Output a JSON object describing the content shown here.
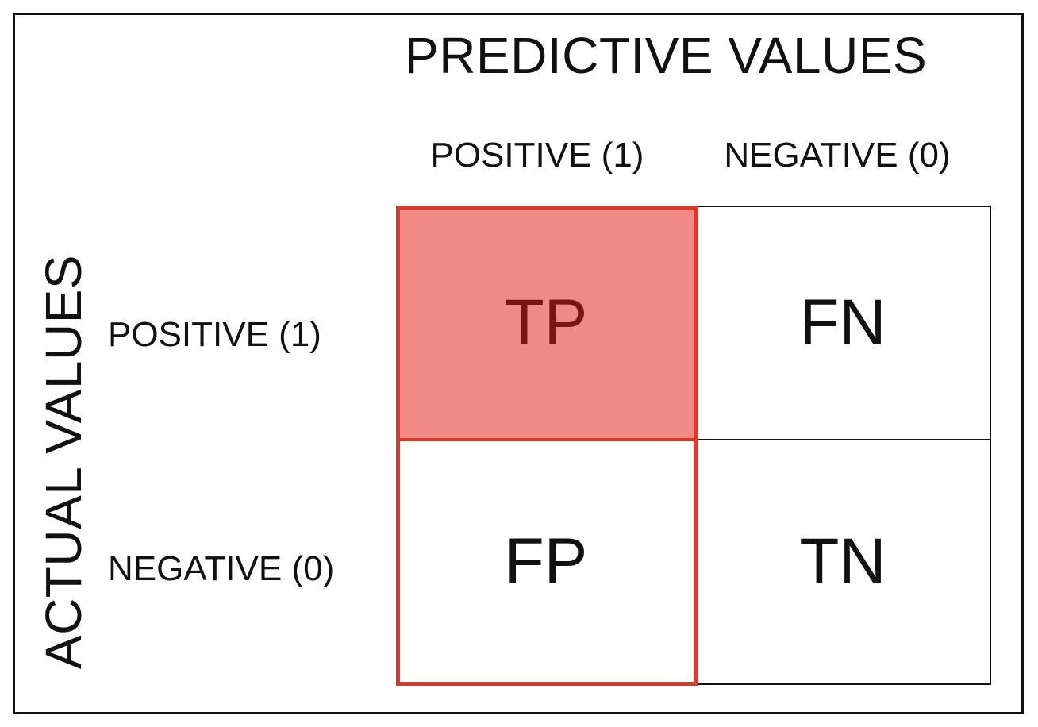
{
  "titles": {
    "predictive": "PREDICTIVE VALUES",
    "actual": "ACTUAL VALUES"
  },
  "columns": [
    {
      "label": "POSITIVE (1)"
    },
    {
      "label": "NEGATIVE (0)"
    }
  ],
  "rows": [
    {
      "label": "POSITIVE (1)"
    },
    {
      "label": "NEGATIVE (0)"
    }
  ],
  "cells": {
    "tp": "TP",
    "fn": "FN",
    "fp": "FP",
    "tn": "TN"
  },
  "colors": {
    "highlight_border": "#e0372c",
    "highlight_fill": "#ef8a85",
    "highlight_text": "#7a1512",
    "text": "#111111"
  },
  "highlighted_column": "POSITIVE (1)",
  "highlighted_cell": "TP"
}
